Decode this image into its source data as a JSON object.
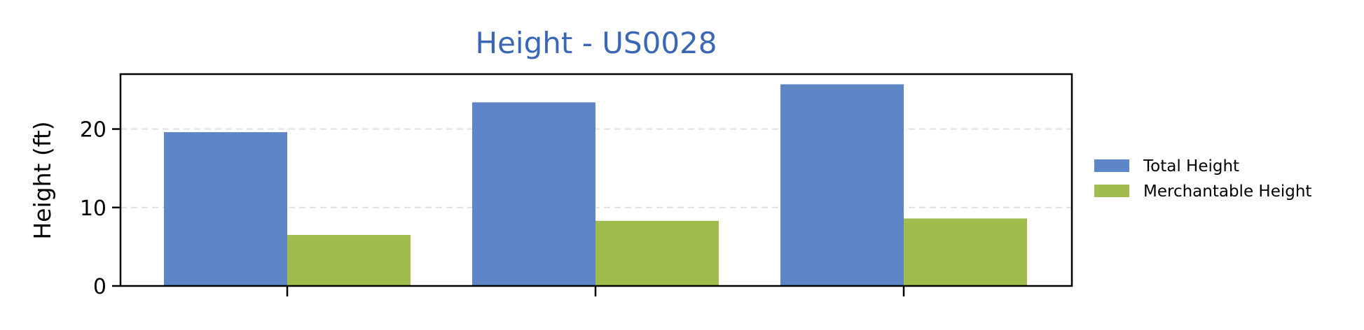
{
  "chart_data": {
    "type": "bar",
    "title": "Height - US0028",
    "title_color": "#3a67b5",
    "xlabel": "",
    "ylabel": "Height (ft)",
    "categories": [
      "",
      "",
      ""
    ],
    "series": [
      {
        "name": "Total Height",
        "color": "#5e86c6",
        "values": [
          19.6,
          23.4,
          25.7
        ]
      },
      {
        "name": "Merchantable Height",
        "color": "#a2bb4d",
        "values": [
          6.5,
          8.3,
          8.6
        ]
      }
    ],
    "ylim": [
      0,
      27
    ],
    "yticks": [
      0,
      10,
      20
    ],
    "grid": "horizontal-dashed",
    "legend_position": "right"
  }
}
